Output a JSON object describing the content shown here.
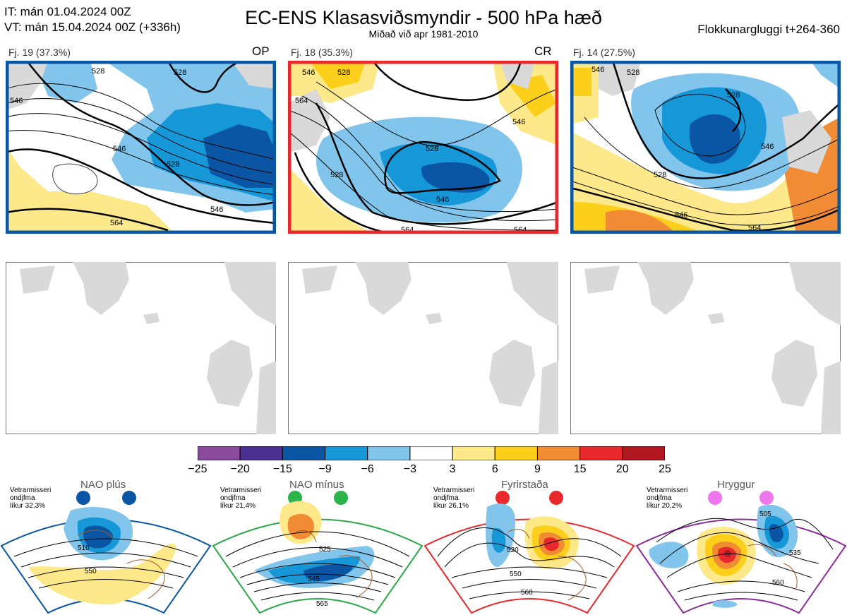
{
  "header": {
    "it_line": "IT: mán 01.04.2024 00Z",
    "vt_line": "VT: mán 15.04.2024 00Z  (+336h)",
    "title": "EC-ENS Klasasviðsmyndir - 500 hPa hæð",
    "subtitle": "Miðað við apr 1981-2010",
    "window": "Flokkunargluggi t+264-360"
  },
  "clusters": [
    {
      "label": "Fj. 19 (37.3%)",
      "tag": "OP",
      "border_color": "#0a56a4",
      "contours": [
        "528",
        "528",
        "546",
        "546",
        "528",
        "546",
        "564"
      ]
    },
    {
      "label": "Fj. 18 (35.3%)",
      "tag": "CR",
      "border_color": "#e8282b",
      "contours": [
        "546",
        "528",
        "564",
        "528",
        "528",
        "546",
        "546",
        "564",
        "564"
      ]
    },
    {
      "label": "Fj. 14 (27.5%)",
      "tag": "",
      "border_color": "#0a56a4",
      "contours": [
        "528",
        "528",
        "546",
        "528",
        "546",
        "546",
        "564"
      ]
    }
  ],
  "colorbar": {
    "ticks": [
      "−25",
      "−20",
      "−15",
      "−9",
      "−6",
      "−3",
      "3",
      "6",
      "9",
      "15",
      "20",
      "25"
    ],
    "colors": [
      "#8b4a9e",
      "#4b2f92",
      "#0a56a4",
      "#1597d8",
      "#81c5ec",
      "#ffffff",
      "#fde98a",
      "#fccf1b",
      "#f18c34",
      "#e8282b",
      "#b0171f"
    ]
  },
  "regimes": [
    {
      "name": "NAO plús",
      "prob_lines": [
        "Vetrarmisseri",
        "ondjfma",
        "líkur 32,3%"
      ],
      "color": "#0a56a4",
      "dot_color": "#0a56a4",
      "contours": [
        "510",
        "550"
      ]
    },
    {
      "name": "NAO mínus",
      "prob_lines": [
        "Vetrarmisseri",
        "ondjfma",
        "líkur 21,4%"
      ],
      "color": "#2aa84a",
      "dot_color": "#2ab44a",
      "contours": [
        "525",
        "545",
        "565"
      ]
    },
    {
      "name": "Fyrirstaða",
      "prob_lines": [
        "Vetrarmisseri",
        "ondjfma",
        "líkur 26,1%"
      ],
      "color": "#e8282b",
      "dot_color": "#e8282b",
      "contours": [
        "520",
        "550",
        "560"
      ]
    },
    {
      "name": "Hryggur",
      "prob_lines": [
        "Vetrarmisseri",
        "ondjfma",
        "líkur 20,2%"
      ],
      "color": "#8b2d9a",
      "dot_color": "#ee77ee",
      "contours": [
        "505",
        "535",
        "560"
      ]
    }
  ]
}
